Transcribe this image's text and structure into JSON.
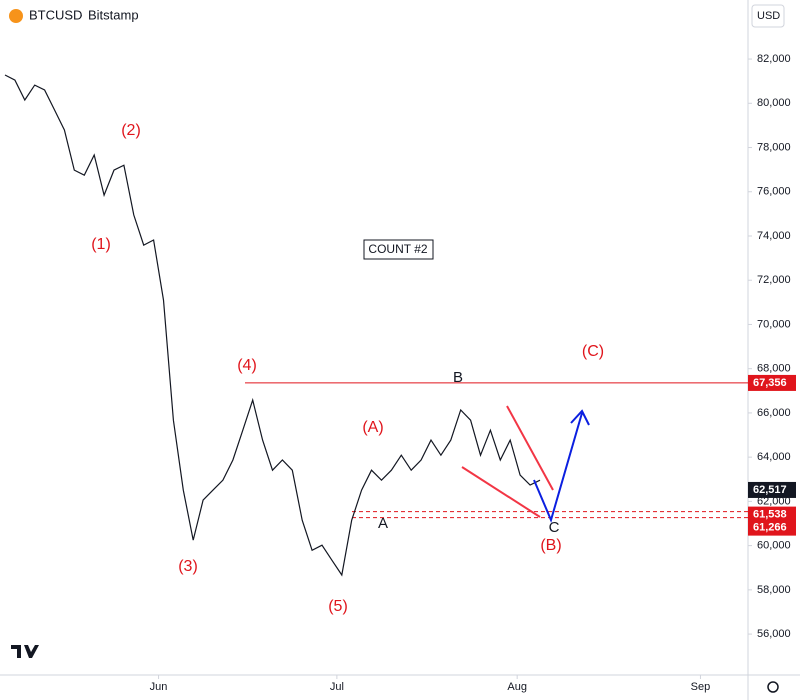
{
  "chart_data": {
    "type": "line",
    "symbol": "BTCUSD",
    "exchange": "Bitstamp",
    "currency": "USD",
    "color": "#131722",
    "values": [
      81280,
      81050,
      80150,
      80820,
      80600,
      79700,
      78790,
      76980,
      76750,
      77660,
      75850,
      76980,
      77200,
      74950,
      73590,
      73820,
      71100,
      65670,
      62510,
      60250,
      62060,
      62510,
      62960,
      63870,
      65220,
      66580,
      64770,
      63410,
      63870,
      63410,
      61150,
      59790,
      60020,
      59340,
      58670,
      61150,
      62510,
      63410,
      62960,
      63410,
      64090,
      63410,
      63870,
      64770,
      64090,
      64770,
      66130,
      65670,
      64090,
      65220,
      63870,
      64770,
      63190,
      62740,
      62960
    ],
    "xlim": [
      0,
      75
    ],
    "xticks": [
      {
        "value": 15.5,
        "label": "Jun"
      },
      {
        "value": 33.5,
        "label": "Jul"
      },
      {
        "value": 51.7,
        "label": "Aug"
      },
      {
        "value": 70.2,
        "label": "Sep"
      }
    ],
    "ylim": [
      54150,
      84670
    ],
    "yticks": [
      {
        "value": 56000,
        "label": "56,000"
      },
      {
        "value": 58000,
        "label": "58,000"
      },
      {
        "value": 60000,
        "label": "60,000"
      },
      {
        "value": 62000,
        "label": "62,000"
      },
      {
        "value": 64000,
        "label": "64,000"
      },
      {
        "value": 66000,
        "label": "66,000"
      },
      {
        "value": 68000,
        "label": "68,000"
      },
      {
        "value": 70000,
        "label": "70,000"
      },
      {
        "value": 72000,
        "label": "72,000"
      },
      {
        "value": 74000,
        "label": "74,000"
      },
      {
        "value": 76000,
        "label": "76,000"
      },
      {
        "value": 78000,
        "label": "78,000"
      },
      {
        "value": 80000,
        "label": "80,000"
      },
      {
        "value": 82000,
        "label": "82,000"
      }
    ],
    "levels": [
      {
        "value": 67356,
        "label": "67,356",
        "color": "#e0151c"
      },
      {
        "value": 61538,
        "label": "61,538",
        "color": "#e0151c"
      },
      {
        "value": 61266,
        "label": "61,266",
        "color": "#e0151c"
      }
    ],
    "last_price": {
      "value": 62517,
      "label": "62,517",
      "color": "#131722"
    },
    "annotations": [
      "(1)",
      "(2)",
      "(3)",
      "(4)",
      "(5)",
      "(A)",
      "(B)",
      "(C)",
      "A",
      "B",
      "C",
      "COUNT #2"
    ]
  }
}
